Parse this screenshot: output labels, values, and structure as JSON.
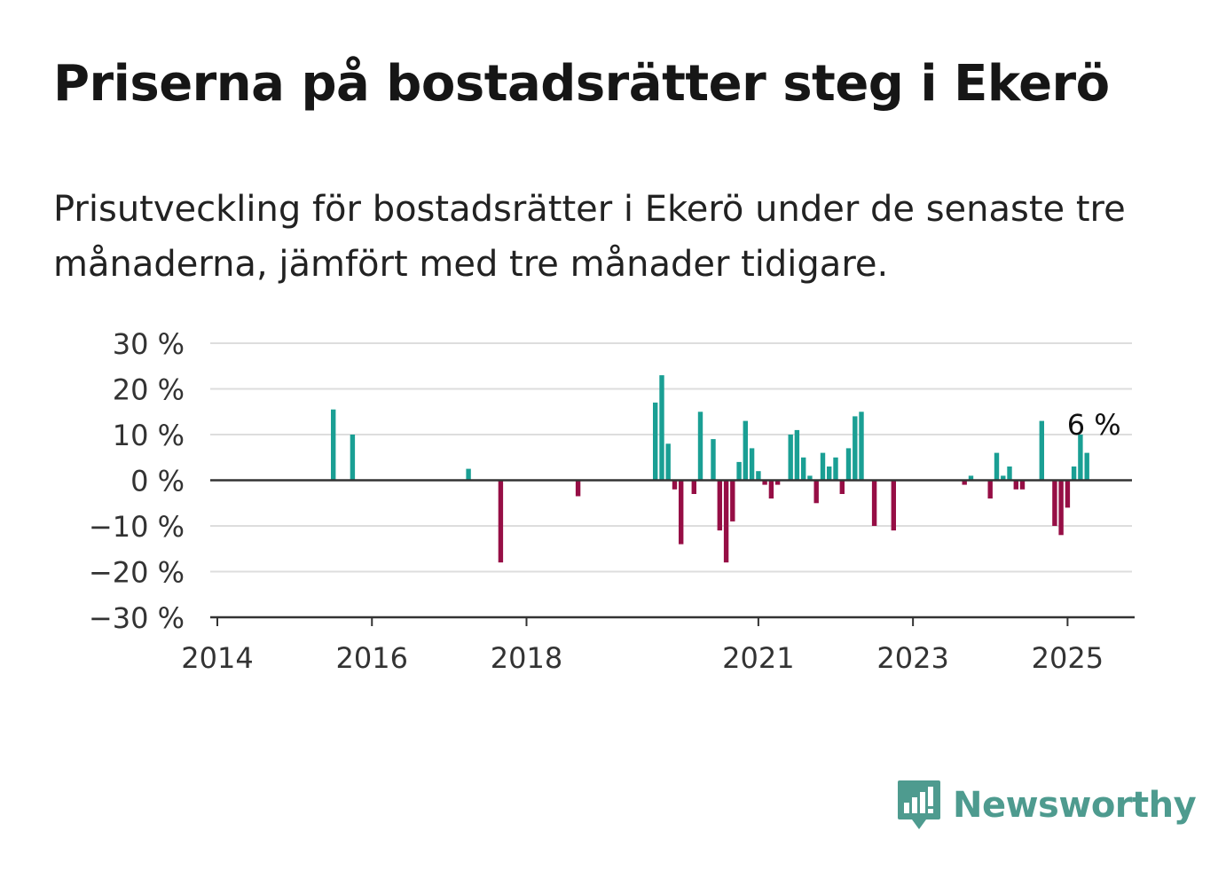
{
  "header": {
    "title": "Priserna på bostadsrätter steg i Ekerö",
    "subtitle": "Prisutveckling för bostadsrätter i Ekerö under de senaste tre månaderna, jämfört med tre månader tidigare."
  },
  "brand": {
    "name": "Newsworthy",
    "color": "#4e9b8f"
  },
  "chart_data": {
    "type": "bar",
    "title": "",
    "xlabel": "",
    "ylabel": "",
    "ylim": [
      -30,
      30
    ],
    "yticks": [
      -30,
      -20,
      -10,
      0,
      10,
      20,
      30
    ],
    "ytick_labels": [
      "−30 %",
      "−20 %",
      "−10 %",
      "0 %",
      "10 %",
      "20 %",
      "30 %"
    ],
    "xlim": [
      "2014-01",
      "2025-11"
    ],
    "xticks": [
      "2014-01",
      "2016-01",
      "2018-01",
      "2021-01",
      "2023-01",
      "2025-01"
    ],
    "xtick_labels": [
      "2014",
      "2016",
      "2018",
      "2021",
      "2023",
      "2025"
    ],
    "grid": true,
    "positive_color": "#1a9f94",
    "negative_color": "#960e45",
    "annotation": {
      "label": "6 %",
      "date": "2025-04",
      "value": 6
    },
    "series": [
      {
        "values": [
          {
            "date": "2015-07",
            "value": 15.5
          },
          {
            "date": "2015-10",
            "value": 10
          },
          {
            "date": "2017-04",
            "value": 2.5
          },
          {
            "date": "2017-09",
            "value": -18
          },
          {
            "date": "2018-09",
            "value": -3.5
          },
          {
            "date": "2019-09",
            "value": 17
          },
          {
            "date": "2019-10",
            "value": 23
          },
          {
            "date": "2019-11",
            "value": 8
          },
          {
            "date": "2019-12",
            "value": -2
          },
          {
            "date": "2020-01",
            "value": -14
          },
          {
            "date": "2020-03",
            "value": -3
          },
          {
            "date": "2020-04",
            "value": 15
          },
          {
            "date": "2020-06",
            "value": 9
          },
          {
            "date": "2020-07",
            "value": -11
          },
          {
            "date": "2020-08",
            "value": -18
          },
          {
            "date": "2020-09",
            "value": -9
          },
          {
            "date": "2020-10",
            "value": 4
          },
          {
            "date": "2020-11",
            "value": 13
          },
          {
            "date": "2020-12",
            "value": 7
          },
          {
            "date": "2021-01",
            "value": 2
          },
          {
            "date": "2021-02",
            "value": -1
          },
          {
            "date": "2021-03",
            "value": -4
          },
          {
            "date": "2021-04",
            "value": -1
          },
          {
            "date": "2021-06",
            "value": 10
          },
          {
            "date": "2021-07",
            "value": 11
          },
          {
            "date": "2021-08",
            "value": 5
          },
          {
            "date": "2021-09",
            "value": 1
          },
          {
            "date": "2021-10",
            "value": -5
          },
          {
            "date": "2021-11",
            "value": 6
          },
          {
            "date": "2021-12",
            "value": 3
          },
          {
            "date": "2022-01",
            "value": 5
          },
          {
            "date": "2022-02",
            "value": -3
          },
          {
            "date": "2022-03",
            "value": 7
          },
          {
            "date": "2022-04",
            "value": 14
          },
          {
            "date": "2022-05",
            "value": 15
          },
          {
            "date": "2022-07",
            "value": -10
          },
          {
            "date": "2022-10",
            "value": -11
          },
          {
            "date": "2023-09",
            "value": -1
          },
          {
            "date": "2023-10",
            "value": 1
          },
          {
            "date": "2024-01",
            "value": -4
          },
          {
            "date": "2024-02",
            "value": 6
          },
          {
            "date": "2024-03",
            "value": 1
          },
          {
            "date": "2024-04",
            "value": 3
          },
          {
            "date": "2024-05",
            "value": -2
          },
          {
            "date": "2024-06",
            "value": -2
          },
          {
            "date": "2024-09",
            "value": 13
          },
          {
            "date": "2024-11",
            "value": -10
          },
          {
            "date": "2024-12",
            "value": -12
          },
          {
            "date": "2025-01",
            "value": -6
          },
          {
            "date": "2025-02",
            "value": 3
          },
          {
            "date": "2025-03",
            "value": 10
          },
          {
            "date": "2025-04",
            "value": 6
          }
        ]
      }
    ]
  }
}
